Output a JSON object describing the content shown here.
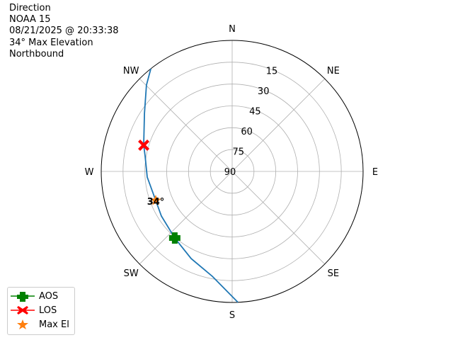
{
  "title_lines": [
    "Direction",
    "NOAA 15",
    "08/21/2025 @ 20:33:38",
    "34° Max Elevation",
    "Northbound"
  ],
  "chart_data": {
    "type": "polar",
    "theta_direction": "clockwise",
    "theta_zero": "N",
    "direction_labels": [
      "N",
      "NE",
      "E",
      "SE",
      "S",
      "SW",
      "W",
      "NW"
    ],
    "radial_ticks": [
      90,
      75,
      60,
      45,
      30,
      15
    ],
    "radial_range": [
      90,
      0
    ],
    "grid": true,
    "track": {
      "color": "#1f77b4",
      "points": [
        {
          "az": 177.5,
          "el": 0
        },
        {
          "az": 190.7,
          "el": 16.7
        },
        {
          "az": 205.2,
          "el": 23.8
        },
        {
          "az": 220.8,
          "el": 29.6
        },
        {
          "az": 237.8,
          "el": 32.5
        },
        {
          "az": 249.2,
          "el": 33.8
        },
        {
          "az": 266.2,
          "el": 31.5
        },
        {
          "az": 280.1,
          "el": 29.2
        },
        {
          "az": 286.5,
          "el": 26.6
        },
        {
          "az": 303.5,
          "el": 17.7
        },
        {
          "az": 315.2,
          "el": 6.4
        },
        {
          "az": 321.6,
          "el": 0
        }
      ]
    },
    "markers": [
      {
        "name": "AOS",
        "az": 220.8,
        "el": 29.6,
        "color": "#008000",
        "shape": "plus"
      },
      {
        "name": "LOS",
        "az": 286.5,
        "el": 26.6,
        "color": "#ff0000",
        "shape": "x"
      },
      {
        "name": "Max El",
        "az": 249.2,
        "el": 33.8,
        "color": "#ff7f0e",
        "shape": "star"
      }
    ],
    "annotation": "34°",
    "legend_position": "lower-left"
  }
}
